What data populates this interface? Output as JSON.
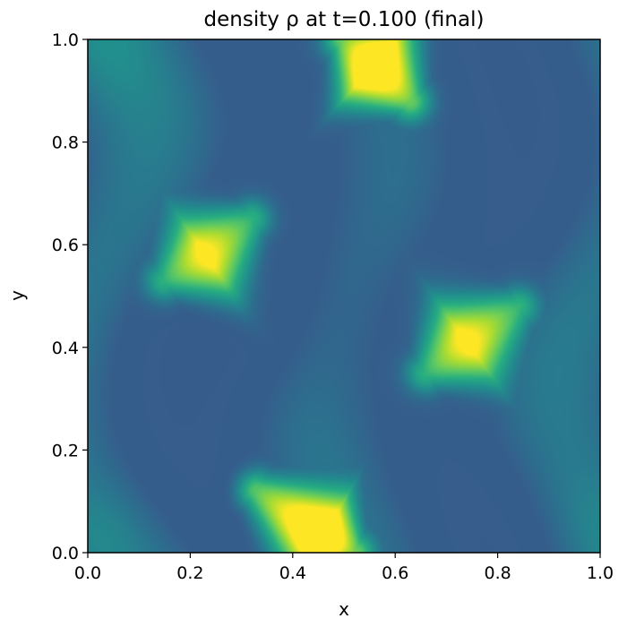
{
  "chart_data": {
    "type": "heatmap",
    "title": "density ρ at t=0.100 (final)",
    "xlabel": "x",
    "ylabel": "y",
    "xlim": [
      0.0,
      1.0
    ],
    "ylim": [
      0.0,
      1.0
    ],
    "xticks": [
      "0.0",
      "0.2",
      "0.4",
      "0.6",
      "0.8",
      "1.0"
    ],
    "yticks": [
      "0.0",
      "0.2",
      "0.4",
      "0.6",
      "0.8",
      "1.0"
    ],
    "colormap": "viridis",
    "value_range": [
      0.0,
      1.0
    ],
    "grid": false,
    "features": [
      {
        "kind": "bright-streak",
        "x": [
          0.52,
          0.46,
          0.33
        ],
        "y": [
          0.0,
          0.03,
          0.12
        ],
        "peak": 1.0
      },
      {
        "kind": "bright-streak",
        "x": [
          0.5,
          0.56,
          0.63
        ],
        "y": [
          1.0,
          0.95,
          0.88
        ],
        "peak": 1.0
      },
      {
        "kind": "bright-streak",
        "x": [
          0.15,
          0.23,
          0.32
        ],
        "y": [
          0.53,
          0.58,
          0.65
        ],
        "peak": 0.78
      },
      {
        "kind": "bright-streak",
        "x": [
          0.66,
          0.74,
          0.84
        ],
        "y": [
          0.35,
          0.41,
          0.48
        ],
        "peak": 0.78
      }
    ]
  }
}
